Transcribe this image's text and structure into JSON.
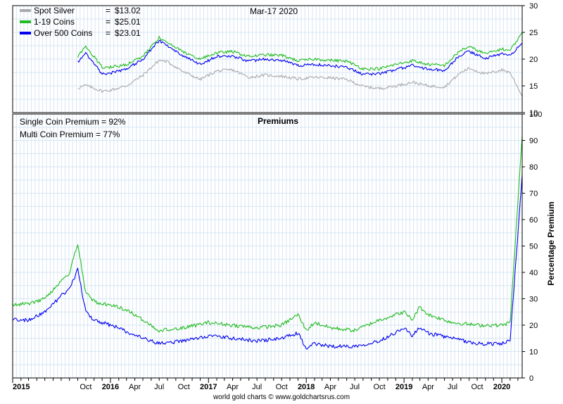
{
  "chart_data": [
    {
      "type": "line",
      "panel": "price",
      "date_label": "Mar-17  2020",
      "ylim": [
        10,
        30
      ],
      "yticks": [
        "10",
        "15",
        "20",
        "25",
        "30"
      ],
      "grid": true,
      "legend_placement": "top-left",
      "legend": [
        {
          "name": "Spot Silver",
          "value_label": "$13.02",
          "color": "#aaaaaa"
        },
        {
          "name": "1-19 Coins",
          "value_label": "$25.01",
          "color": "#22bb22"
        },
        {
          "name": "Over 500 Coins",
          "value_label": "$23.01",
          "color": "#0000ee"
        }
      ],
      "x": [
        "2015-09",
        "2015-10",
        "2015-12",
        "2016-01",
        "2016-03",
        "2016-05",
        "2016-07",
        "2016-08",
        "2016-10",
        "2016-12",
        "2017-02",
        "2017-04",
        "2017-06",
        "2017-08",
        "2017-10",
        "2017-12",
        "2018-02",
        "2018-04",
        "2018-06",
        "2018-08",
        "2018-10",
        "2018-12",
        "2019-02",
        "2019-04",
        "2019-06",
        "2019-08",
        "2019-09",
        "2019-11",
        "2020-01",
        "2020-02",
        "2020-03-17"
      ],
      "series": [
        {
          "name": "Spot Silver",
          "color": "#aaaaaa",
          "values": [
            14.6,
            15.1,
            14.0,
            14.2,
            15.0,
            17.0,
            19.8,
            19.5,
            17.6,
            16.2,
            17.8,
            18.0,
            16.6,
            17.0,
            16.8,
            16.3,
            16.6,
            16.5,
            16.2,
            14.9,
            14.5,
            15.0,
            15.7,
            15.0,
            14.8,
            17.5,
            18.3,
            17.2,
            18.0,
            17.5,
            13.0
          ]
        },
        {
          "name": "1-19 Coins",
          "color": "#22bb22",
          "values": [
            20.5,
            22.4,
            18.5,
            18.5,
            19.0,
            20.5,
            24.0,
            23.0,
            21.3,
            20.0,
            21.2,
            21.4,
            20.5,
            20.8,
            20.7,
            19.7,
            20.0,
            19.8,
            19.6,
            18.2,
            18.2,
            19.0,
            19.7,
            19.0,
            18.8,
            21.7,
            22.3,
            21.0,
            21.9,
            21.6,
            25.01
          ]
        },
        {
          "name": "Over 500 Coins",
          "color": "#0000ee",
          "values": [
            19.4,
            21.2,
            17.2,
            17.4,
            18.2,
            20.0,
            23.5,
            22.5,
            20.5,
            19.0,
            20.5,
            20.6,
            19.6,
            20.0,
            19.8,
            18.8,
            19.0,
            18.8,
            18.5,
            17.2,
            17.3,
            18.0,
            18.8,
            18.1,
            17.9,
            20.8,
            21.4,
            20.2,
            21.0,
            20.6,
            23.01
          ]
        }
      ]
    },
    {
      "type": "line",
      "panel": "premiums",
      "title": "Premiums",
      "ylabel": "Percentage Premium",
      "ylim": [
        0,
        100
      ],
      "yticks": [
        "0",
        "10",
        "20",
        "30",
        "40",
        "50",
        "60",
        "70",
        "80",
        "90",
        "100"
      ],
      "grid": true,
      "annotations": [
        "Single Coin Premium = 92%",
        "Multi Coin Premium = 77%"
      ],
      "x": [
        "2015-01",
        "2015-03",
        "2015-05",
        "2015-08",
        "2015-09",
        "2015-10",
        "2015-11",
        "2015-12",
        "2016-02",
        "2016-04",
        "2016-07",
        "2016-10",
        "2017-01",
        "2017-04",
        "2017-07",
        "2017-10",
        "2017-12",
        "2018-01",
        "2018-02",
        "2018-04",
        "2018-07",
        "2018-10",
        "2019-01",
        "2019-02",
        "2019-03",
        "2019-04",
        "2019-07",
        "2019-10",
        "2020-01",
        "2020-02",
        "2020-03-17"
      ],
      "series": [
        {
          "name": "Single Coin Premium",
          "color": "#22bb22",
          "values": [
            28,
            28,
            30,
            40,
            51,
            32,
            29,
            28,
            27,
            24,
            18,
            19,
            21,
            20,
            19,
            20,
            24,
            18,
            21,
            19,
            18,
            22,
            25,
            22,
            27,
            24,
            21,
            20,
            20,
            21,
            92
          ]
        },
        {
          "name": "Multi Coin Premium",
          "color": "#0000ee",
          "values": [
            22,
            22,
            25,
            34,
            41,
            25,
            22,
            21,
            19,
            16,
            13,
            14,
            16,
            15,
            14,
            15,
            17,
            11,
            13,
            12,
            12,
            14,
            19,
            16,
            19,
            17,
            15,
            13,
            13,
            14,
            77
          ]
        }
      ]
    }
  ],
  "x_axis": {
    "labels": [
      {
        "text": "2015",
        "date": "2015-01",
        "year": true
      },
      {
        "text": "Oct",
        "date": "2015-10",
        "year": false
      },
      {
        "text": "2016",
        "date": "2016-01",
        "year": true
      },
      {
        "text": "Apr",
        "date": "2016-04",
        "year": false
      },
      {
        "text": "Jul",
        "date": "2016-07",
        "year": false
      },
      {
        "text": "Oct",
        "date": "2016-10",
        "year": false
      },
      {
        "text": "2017",
        "date": "2017-01",
        "year": true
      },
      {
        "text": "Apr",
        "date": "2017-04",
        "year": false
      },
      {
        "text": "Jul",
        "date": "2017-07",
        "year": false
      },
      {
        "text": "Oct",
        "date": "2017-10",
        "year": false
      },
      {
        "text": "2018",
        "date": "2018-01",
        "year": true
      },
      {
        "text": "Apr",
        "date": "2018-04",
        "year": false
      },
      {
        "text": "Jul",
        "date": "2018-07",
        "year": false
      },
      {
        "text": "Oct",
        "date": "2018-10",
        "year": false
      },
      {
        "text": "2019",
        "date": "2019-01",
        "year": true
      },
      {
        "text": "Apr",
        "date": "2019-04",
        "year": false
      },
      {
        "text": "Jul",
        "date": "2019-07",
        "year": false
      },
      {
        "text": "Oct",
        "date": "2019-10",
        "year": false
      },
      {
        "text": "2020",
        "date": "2020-01",
        "year": true
      }
    ],
    "range": [
      "2015-01",
      "2020-03-17"
    ]
  },
  "footer": "world gold charts © www.goldchartsrus.com"
}
